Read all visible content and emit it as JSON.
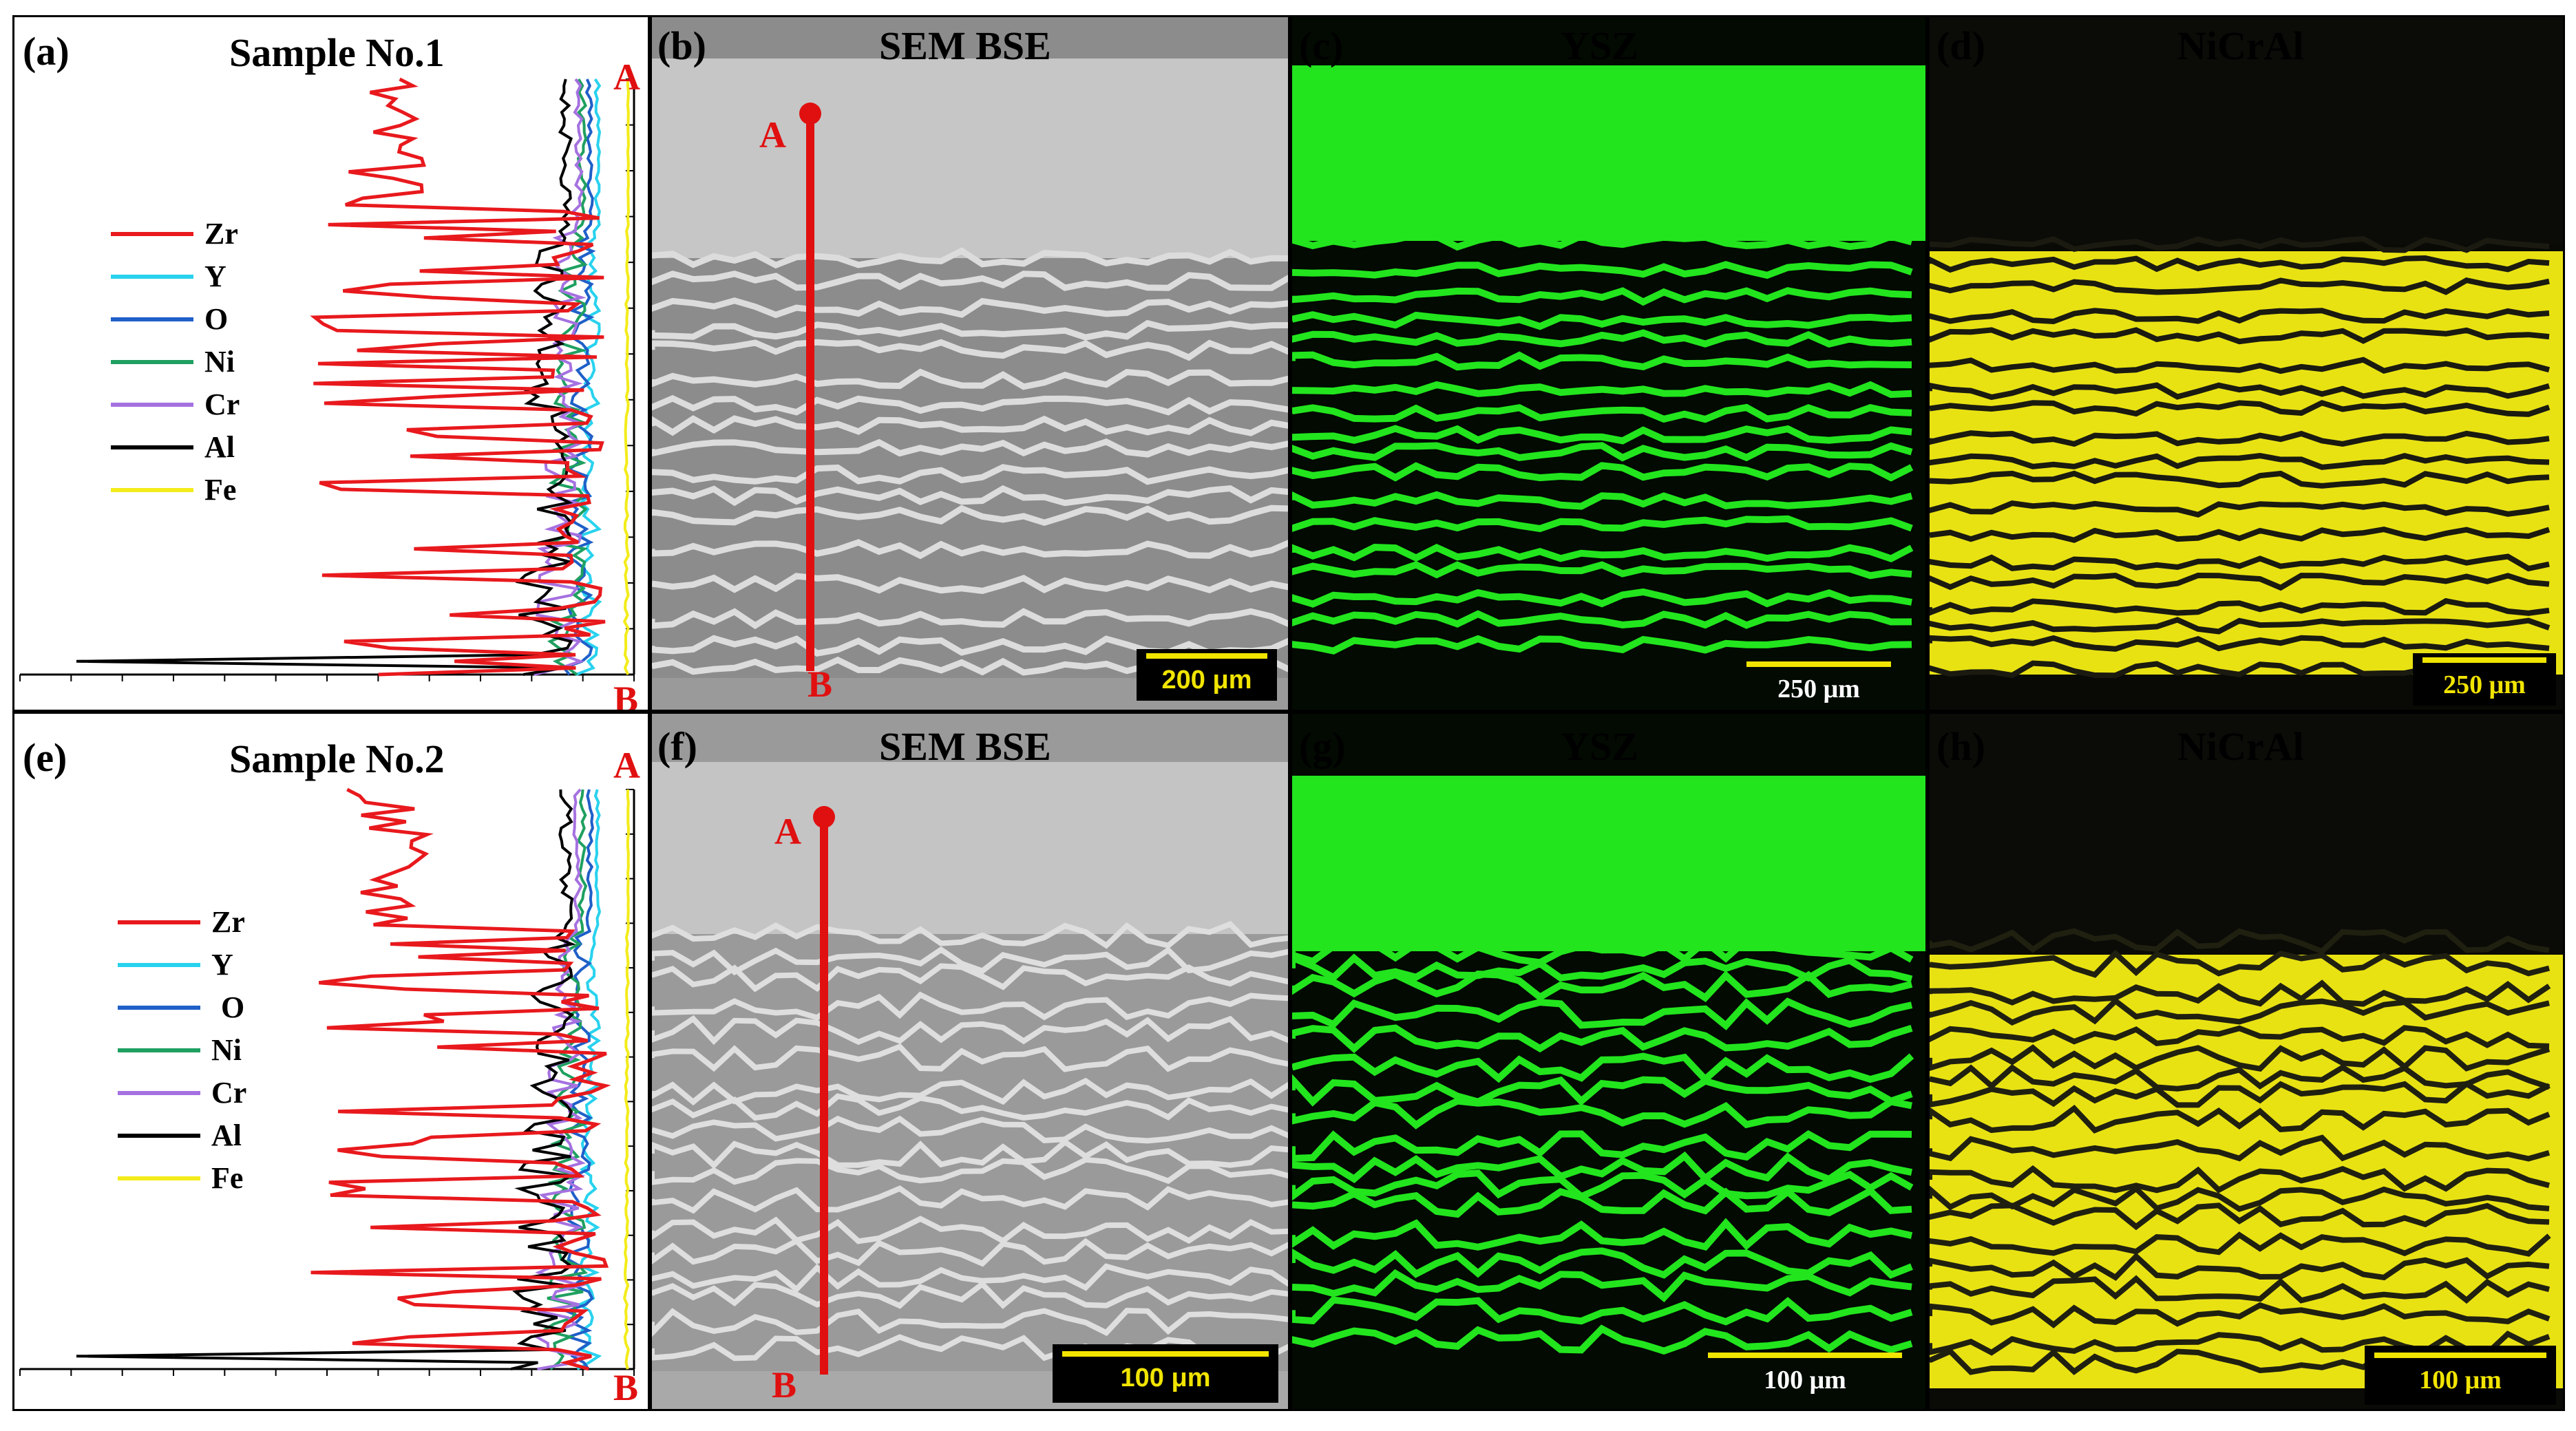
{
  "colors": {
    "Zr": "#e8191d",
    "Y": "#28d2ee",
    "O": "#1f5fc8",
    "Ni": "#1fa060",
    "Cr": "#a571e0",
    "Al": "#000000",
    "Fe": "#f3ec1a",
    "ysz_map": "#22e51e",
    "nicral_map": "#e9e213",
    "sem_grey": "#a7a7a7",
    "marker_red": "#e01010"
  },
  "top_row": {
    "a": {
      "panel_label": "(a)",
      "title": "Sample No.1",
      "endpoint_top": "A",
      "endpoint_bottom": "B",
      "legend": [
        "Zr",
        "Y",
        "O",
        "Ni",
        "Cr",
        "Al",
        "Fe"
      ]
    },
    "b": {
      "panel_label": "(b)",
      "title": "SEM BSE",
      "marker_top": "A",
      "marker_bottom": "B",
      "scale": "200 μm"
    },
    "c": {
      "panel_label": "(c)",
      "title": "YSZ",
      "scale": "250 μm"
    },
    "d": {
      "panel_label": "(d)",
      "title": "NiCrAl",
      "scale": "250 μm"
    }
  },
  "bottom_row": {
    "e": {
      "panel_label": "(e)",
      "title": "Sample No.2",
      "endpoint_top": "A",
      "endpoint_bottom": "B",
      "legend": [
        "Zr",
        "Y",
        "O",
        "Ni",
        "Cr",
        "Al",
        "Fe"
      ]
    },
    "f": {
      "panel_label": "(f)",
      "title": "SEM BSE",
      "marker_top": "A",
      "marker_bottom": "B",
      "scale": "100 μm"
    },
    "g": {
      "panel_label": "(g)",
      "title": "YSZ",
      "scale": "100 μm"
    },
    "h": {
      "panel_label": "(h)",
      "title": "NiCrAl",
      "scale": "100 μm"
    }
  }
}
